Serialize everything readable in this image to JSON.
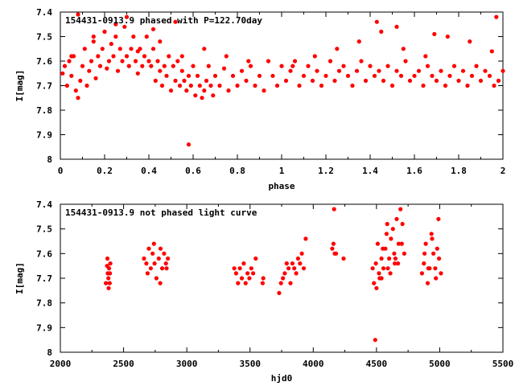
{
  "chart_data": [
    {
      "type": "scatter",
      "title": "154431-0913.9 phased with P=122.70day",
      "xlabel": "phase",
      "ylabel": "I[mag]",
      "xlim": [
        0,
        2
      ],
      "ylim": [
        7.4,
        8.0
      ],
      "y_inverted": true,
      "xticks": [
        "0",
        "0.2",
        "0.4",
        "0.6",
        "0.8",
        "1",
        "1.2",
        "1.4",
        "1.6",
        "1.8",
        "2"
      ],
      "yticks": [
        "7.4",
        "7.5",
        "7.6",
        "7.7",
        "7.8",
        "7.9",
        "8"
      ],
      "marker": "filled-circle",
      "color": "#ff0000",
      "grid": false,
      "series": [
        {
          "x": [
            0.01,
            0.02,
            0.03,
            0.04,
            0.05,
            0.06,
            0.07,
            0.08,
            0.09,
            0.1,
            0.11,
            0.12,
            0.13,
            0.14,
            0.15,
            0.16,
            0.17,
            0.18,
            0.19,
            0.2,
            0.21,
            0.22,
            0.23,
            0.24,
            0.25,
            0.26,
            0.27,
            0.28,
            0.29,
            0.3,
            0.31,
            0.32,
            0.33,
            0.34,
            0.35,
            0.36,
            0.37,
            0.38,
            0.39,
            0.4,
            0.41,
            0.42,
            0.43,
            0.44,
            0.45,
            0.46,
            0.47,
            0.48,
            0.49,
            0.5,
            0.51,
            0.52,
            0.53,
            0.54,
            0.55,
            0.56,
            0.57,
            0.58,
            0.59,
            0.6,
            0.61,
            0.62,
            0.63,
            0.64,
            0.65,
            0.66,
            0.67,
            0.68,
            0.69,
            0.7,
            0.72,
            0.74,
            0.76,
            0.78,
            0.8,
            0.82,
            0.84,
            0.86,
            0.88,
            0.9,
            0.92,
            0.94,
            0.96,
            0.98,
            1.0,
            1.02,
            1.04,
            1.06,
            1.08,
            1.1,
            1.12,
            1.14,
            1.16,
            1.18,
            1.2,
            1.22,
            1.24,
            1.26,
            1.28,
            1.3,
            1.32,
            1.34,
            1.36,
            1.38,
            1.4,
            1.42,
            1.44,
            1.46,
            1.48,
            1.5,
            1.52,
            1.54,
            1.56,
            1.58,
            1.6,
            1.62,
            1.64,
            1.66,
            1.68,
            1.7,
            1.72,
            1.74,
            1.76,
            1.78,
            1.8,
            1.82,
            1.84,
            1.86,
            1.88,
            1.9,
            1.92,
            1.94,
            1.96,
            1.98,
            2.0,
            0.05,
            0.15,
            0.25,
            0.35,
            0.45,
            0.55,
            0.65,
            0.75,
            0.85,
            1.05,
            1.15,
            1.25,
            1.35,
            1.45,
            1.55,
            1.65,
            1.75,
            1.85,
            1.95,
            0.58,
            0.08,
            0.3,
            0.42,
            0.52,
            1.43,
            1.52,
            1.69,
            1.97
          ],
          "y": [
            7.65,
            7.62,
            7.7,
            7.6,
            7.66,
            7.58,
            7.72,
            7.75,
            7.68,
            7.62,
            7.55,
            7.7,
            7.64,
            7.6,
            7.52,
            7.67,
            7.58,
            7.62,
            7.55,
            7.48,
            7.63,
            7.6,
            7.53,
            7.58,
            7.5,
            7.64,
            7.55,
            7.6,
            7.46,
            7.58,
            7.62,
            7.55,
            7.5,
            7.6,
            7.65,
            7.55,
            7.62,
            7.58,
            7.5,
            7.6,
            7.62,
            7.55,
            7.68,
            7.6,
            7.64,
            7.7,
            7.62,
            7.66,
            7.58,
            7.72,
            7.62,
            7.68,
            7.6,
            7.7,
            7.64,
            7.68,
            7.72,
            7.66,
            7.7,
            7.62,
            7.74,
            7.66,
            7.7,
            7.75,
            7.72,
            7.68,
            7.62,
            7.7,
            7.74,
            7.66,
            7.7,
            7.63,
            7.72,
            7.66,
            7.7,
            7.64,
            7.68,
            7.62,
            7.7,
            7.66,
            7.72,
            7.6,
            7.66,
            7.7,
            7.62,
            7.68,
            7.64,
            7.6,
            7.7,
            7.66,
            7.62,
            7.68,
            7.64,
            7.7,
            7.66,
            7.6,
            7.68,
            7.64,
            7.62,
            7.66,
            7.7,
            7.64,
            7.6,
            7.68,
            7.62,
            7.66,
            7.64,
            7.68,
            7.62,
            7.7,
            7.64,
            7.66,
            7.6,
            7.68,
            7.66,
            7.64,
            7.7,
            7.62,
            7.66,
            7.68,
            7.64,
            7.7,
            7.66,
            7.62,
            7.68,
            7.64,
            7.7,
            7.66,
            7.62,
            7.68,
            7.64,
            7.66,
            7.7,
            7.68,
            7.64,
            7.58,
            7.5,
            7.45,
            7.56,
            7.52,
            7.58,
            7.55,
            7.58,
            7.6,
            7.62,
            7.58,
            7.55,
            7.52,
            7.48,
            7.55,
            7.58,
            7.5,
            7.52,
            7.56,
            7.94,
            7.41,
            7.42,
            7.47,
            7.44,
            7.44,
            7.46,
            7.49,
            7.42
          ]
        }
      ]
    },
    {
      "type": "scatter",
      "title": "154431-0913.9 not phased light curve",
      "xlabel": "hjd0",
      "ylabel": "I[mag]",
      "xlim": [
        2000,
        5500
      ],
      "ylim": [
        7.4,
        8.0
      ],
      "y_inverted": true,
      "xticks": [
        "2000",
        "2500",
        "3000",
        "3500",
        "4000",
        "4500",
        "5000",
        "5500"
      ],
      "yticks": [
        "7.4",
        "7.5",
        "7.6",
        "7.7",
        "7.8",
        "7.9",
        "8"
      ],
      "marker": "filled-circle",
      "color": "#ff0000",
      "grid": false,
      "series": [
        {
          "x": [
            2360,
            2370,
            2375,
            2380,
            2385,
            2390,
            2395,
            2372,
            2382,
            2392,
            2662,
            2680,
            2700,
            2715,
            2730,
            2745,
            2760,
            2778,
            2792,
            2805,
            2820,
            2835,
            2850,
            2690,
            2740,
            2790,
            2840,
            3375,
            3390,
            3405,
            3420,
            3435,
            3450,
            3465,
            3480,
            3495,
            3510,
            3525,
            3545,
            3600,
            3605,
            3730,
            3745,
            3760,
            3775,
            3790,
            3805,
            3820,
            3835,
            3850,
            3865,
            3880,
            3895,
            3910,
            3925,
            3940,
            4150,
            4160,
            4170,
            4180,
            4240,
            4480,
            4495,
            4510,
            4525,
            4540,
            4555,
            4570,
            4585,
            4600,
            4615,
            4630,
            4645,
            4660,
            4675,
            4690,
            4705,
            4720,
            4470,
            4500,
            4520,
            4550,
            4580,
            4610,
            4640,
            4670,
            4700,
            4540,
            4590,
            4650,
            4860,
            4875,
            4890,
            4905,
            4920,
            4935,
            4950,
            4965,
            4980,
            4995,
            5010,
            4880,
            4910,
            4940,
            4970,
            4990,
            4165,
            4490
          ],
          "y": [
            7.72,
            7.65,
            7.68,
            7.7,
            7.66,
            7.72,
            7.64,
            7.62,
            7.74,
            7.68,
            7.62,
            7.64,
            7.58,
            7.66,
            7.6,
            7.64,
            7.7,
            7.62,
            7.58,
            7.66,
            7.6,
            7.64,
            7.62,
            7.68,
            7.56,
            7.72,
            7.66,
            7.66,
            7.68,
            7.72,
            7.66,
            7.7,
            7.64,
            7.72,
            7.68,
            7.7,
            7.66,
            7.68,
            7.62,
            7.72,
            7.7,
            7.76,
            7.72,
            7.7,
            7.68,
            7.64,
            7.66,
            7.72,
            7.64,
            7.66,
            7.68,
            7.62,
            7.64,
            7.6,
            7.66,
            7.54,
            7.58,
            7.56,
            7.6,
            7.6,
            7.62,
            7.72,
            7.64,
            7.56,
            7.7,
            7.62,
            7.66,
            7.58,
            7.48,
            7.62,
            7.54,
            7.5,
            7.64,
            7.46,
            7.56,
            7.42,
            7.48,
            7.6,
            7.66,
            7.74,
            7.68,
            7.58,
            7.52,
            7.68,
            7.6,
            7.64,
            7.56,
            7.7,
            7.66,
            7.62,
            7.68,
            7.64,
            7.56,
            7.72,
            7.66,
            7.52,
            7.6,
            7.66,
            7.58,
            7.62,
            7.68,
            7.6,
            7.66,
            7.54,
            7.7,
            7.46,
            7.42,
            7.95
          ]
        }
      ]
    }
  ]
}
